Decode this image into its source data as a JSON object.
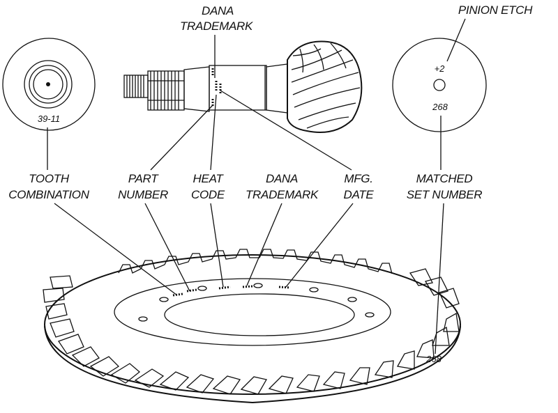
{
  "labels": {
    "dana_trademark_top_line1": "DANA",
    "dana_trademark_top_line2": "TRADEMARK",
    "pinion_etch": "PINION ETCH",
    "tooth_combination_line1": "TOOTH",
    "tooth_combination_line2": "COMBINATION",
    "part_number_line1": "PART",
    "part_number_line2": "NUMBER",
    "heat_code_line1": "HEAT",
    "heat_code_line2": "CODE",
    "dana_trademark_line1": "DANA",
    "dana_trademark_line2": "TRADEMARK",
    "mfg_date_line1": "MFG.",
    "mfg_date_line2": "DATE",
    "matched_set_line1": "MATCHED",
    "matched_set_line2": "SET NUMBER"
  },
  "markings": {
    "tooth_ratio": "39-11",
    "pinion_etch_value": "+2",
    "pinion_set_number": "268",
    "ring_gear_set_number": "268"
  }
}
